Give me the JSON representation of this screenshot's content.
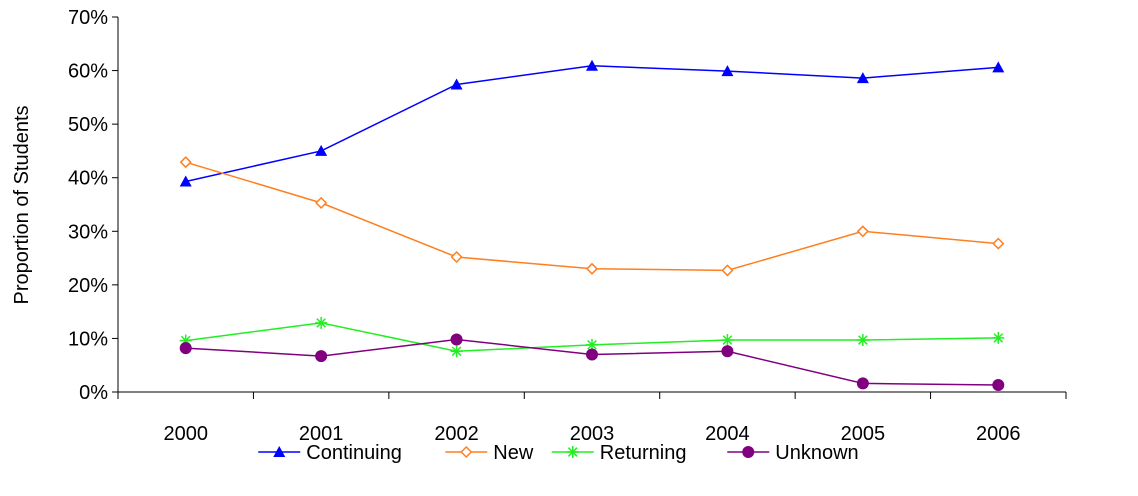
{
  "chart_data": {
    "type": "line",
    "title": "",
    "xlabel": "",
    "ylabel": "Proportion of Students",
    "categories": [
      "2000",
      "2001",
      "2002",
      "2003",
      "2004",
      "2005",
      "2006"
    ],
    "ylim": [
      0,
      70
    ],
    "yticks": [
      0,
      10,
      20,
      30,
      40,
      50,
      60,
      70
    ],
    "ytick_labels": [
      "0%",
      "10%",
      "20%",
      "30%",
      "40%",
      "50%",
      "60%",
      "70%"
    ],
    "grid": false,
    "legend_position": "bottom",
    "series": [
      {
        "name": "Continuing",
        "color": "#0000ff",
        "marker": "triangle",
        "values": [
          39.3,
          45,
          57.4,
          60.9,
          59.9,
          58.6,
          60.6
        ]
      },
      {
        "name": "New",
        "color": "#ff7f1f",
        "marker": "diamond-open",
        "values": [
          42.9,
          35.3,
          25.2,
          23,
          22.7,
          30,
          27.7
        ]
      },
      {
        "name": "Returning",
        "color": "#22ee22",
        "marker": "asterisk",
        "values": [
          9.6,
          12.9,
          7.6,
          8.8,
          9.7,
          9.7,
          10.1
        ]
      },
      {
        "name": "Unknown",
        "color": "#800080",
        "marker": "circle",
        "values": [
          8.2,
          6.7,
          9.8,
          7,
          7.6,
          1.6,
          1.3
        ]
      }
    ]
  }
}
